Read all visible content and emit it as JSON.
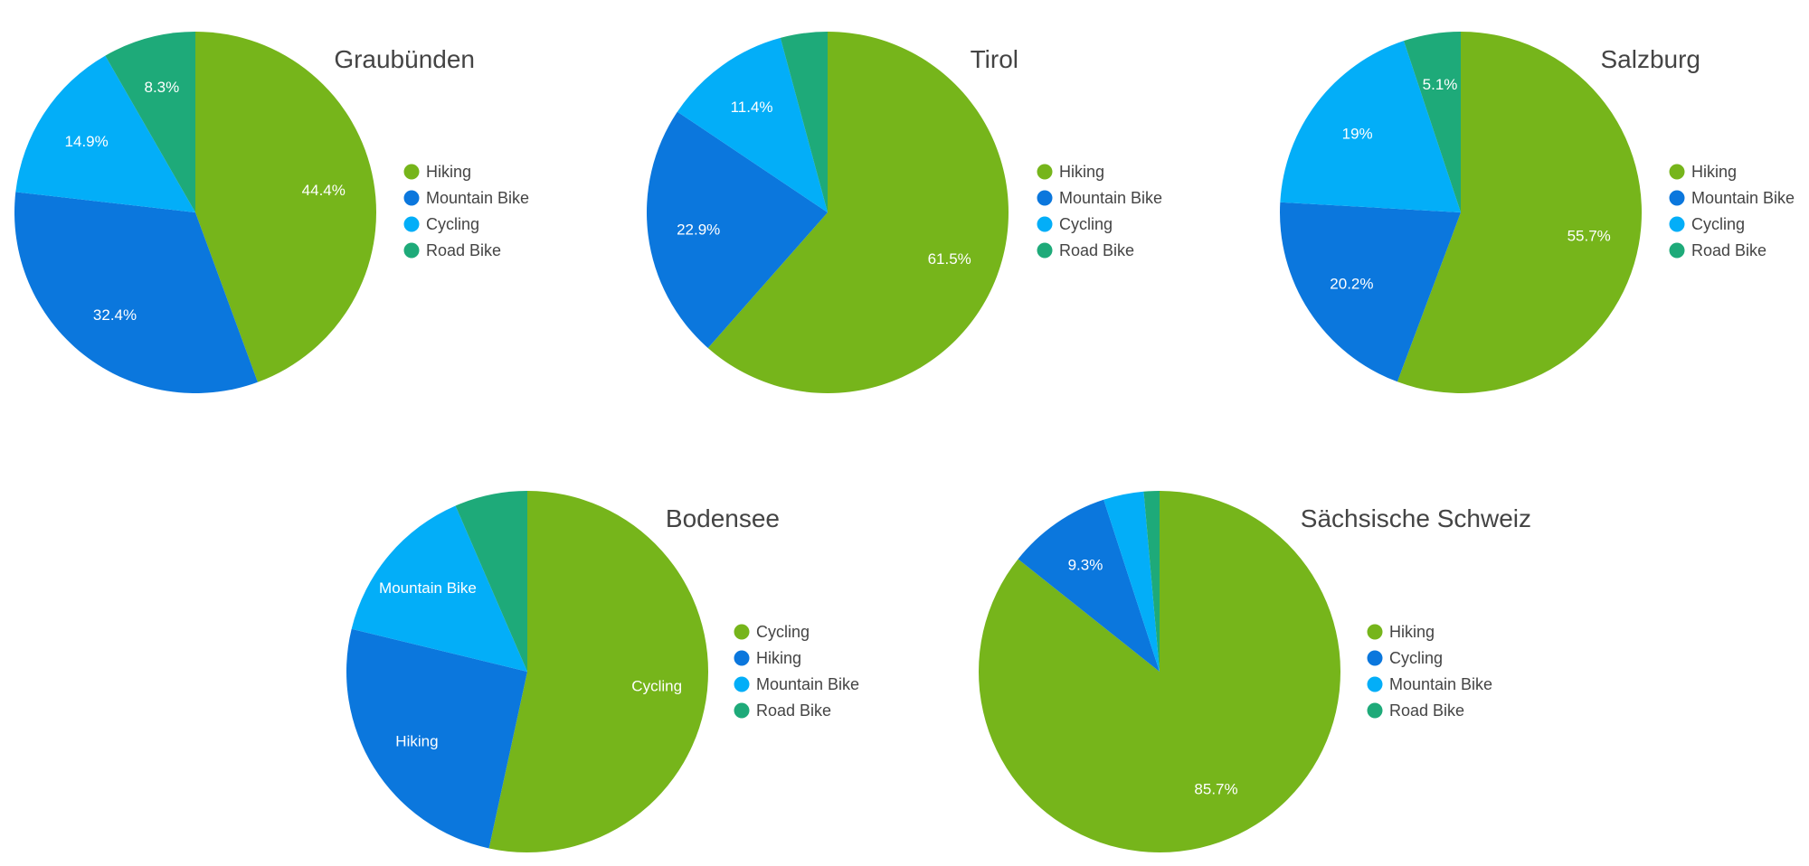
{
  "chart_data": [
    {
      "type": "pie",
      "title": "Graubünden",
      "categories": [
        "Hiking",
        "Mountain Bike",
        "Cycling",
        "Road Bike"
      ],
      "values": [
        44.4,
        32.4,
        14.9,
        8.3
      ],
      "slice_labels": [
        "44.4%",
        "32.4%",
        "14.9%",
        "8.3%"
      ],
      "colors": [
        "#76b51b",
        "#0b77dd",
        "#03aef8",
        "#1eaa79"
      ],
      "legend": "right"
    },
    {
      "type": "pie",
      "title": "Tirol",
      "categories": [
        "Hiking",
        "Mountain Bike",
        "Cycling",
        "Road Bike"
      ],
      "values": [
        61.5,
        22.9,
        11.4,
        4.2
      ],
      "slice_labels": [
        "61.5%",
        "22.9%",
        "11.4%",
        ""
      ],
      "colors": [
        "#76b51b",
        "#0b77dd",
        "#03aef8",
        "#1eaa79"
      ],
      "legend": "right"
    },
    {
      "type": "pie",
      "title": "Salzburg",
      "categories": [
        "Hiking",
        "Mountain Bike",
        "Cycling",
        "Road Bike"
      ],
      "values": [
        55.7,
        20.2,
        19,
        5.1
      ],
      "slice_labels": [
        "55.7%",
        "20.2%",
        "19%",
        "5.1%"
      ],
      "colors": [
        "#76b51b",
        "#0b77dd",
        "#03aef8",
        "#1eaa79"
      ],
      "legend": "right"
    },
    {
      "type": "pie",
      "title": "Bodensee",
      "categories": [
        "Cycling",
        "Hiking",
        "Mountain Bike",
        "Road Bike"
      ],
      "values": [
        53.4,
        25.4,
        14.7,
        6.5
      ],
      "slice_labels": [
        "Cycling",
        "Hiking",
        "Mountain Bike",
        ""
      ],
      "colors": [
        "#76b51b",
        "#0b77dd",
        "#03aef8",
        "#1eaa79"
      ],
      "legend": "right"
    },
    {
      "type": "pie",
      "title": "Sächsische Schweiz",
      "categories": [
        "Hiking",
        "Cycling",
        "Mountain Bike",
        "Road Bike"
      ],
      "values": [
        85.7,
        9.3,
        3.6,
        1.4
      ],
      "slice_labels": [
        "85.7%",
        "9.3%",
        "",
        ""
      ],
      "colors": [
        "#76b51b",
        "#0b77dd",
        "#03aef8",
        "#1eaa79"
      ],
      "legend": "right"
    }
  ]
}
